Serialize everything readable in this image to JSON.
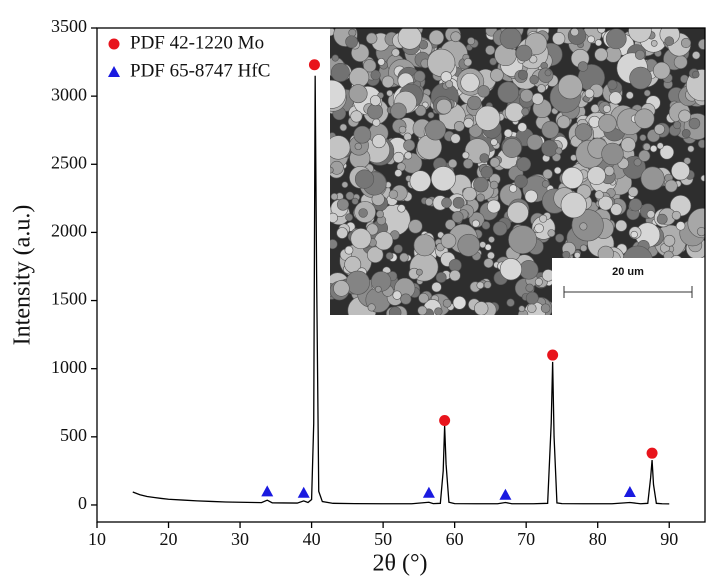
{
  "chart_data": {
    "type": "line",
    "xlabel": "2θ (°)",
    "ylabel": "Intensity (a.u.)",
    "xlim": [
      10,
      95
    ],
    "xticks": [
      10,
      20,
      30,
      40,
      50,
      60,
      70,
      80,
      90
    ],
    "ylim": [
      -125,
      3500
    ],
    "yticks": [
      0,
      500,
      1000,
      1500,
      2000,
      2500,
      3000,
      3500
    ],
    "legend": "upper left",
    "series": [
      {
        "type": "line",
        "color": "#000000",
        "x": [
          15,
          16,
          17,
          18,
          19,
          20,
          22,
          24,
          26,
          28,
          30,
          32,
          33,
          33.8,
          34.5,
          36,
          38,
          38.9,
          39.5,
          40,
          40.3,
          40.5,
          40.7,
          41,
          41.5,
          43,
          46,
          50,
          54,
          56.4,
          57,
          58,
          58.4,
          58.6,
          58.8,
          59.2,
          60,
          63,
          66,
          67.1,
          68,
          71,
          73,
          73.5,
          73.7,
          73.9,
          74.3,
          75,
          78,
          82,
          84.5,
          86,
          87,
          87.4,
          87.6,
          87.8,
          88.2,
          89,
          90
        ],
        "values": [
          95,
          75,
          62,
          55,
          48,
          42,
          36,
          30,
          26,
          22,
          20,
          18,
          17,
          35,
          16,
          15,
          14,
          30,
          18,
          40,
          600,
          3150,
          1700,
          100,
          25,
          12,
          10,
          9,
          9,
          20,
          10,
          12,
          250,
          580,
          300,
          20,
          10,
          9,
          9,
          18,
          9,
          9,
          12,
          600,
          1050,
          500,
          15,
          10,
          9,
          9,
          18,
          9,
          12,
          200,
          330,
          150,
          12,
          9,
          8
        ]
      },
      {
        "type": "scatter",
        "name": "PDF 42-1220 Mo",
        "marker": "circle",
        "color": "#e8141c",
        "x": [
          40.4,
          58.6,
          73.7,
          87.6
        ],
        "values": [
          3230,
          620,
          1100,
          380
        ]
      },
      {
        "type": "scatter",
        "name": "PDF 65-8747 HfC",
        "marker": "triangle",
        "color": "#1a1ae0",
        "x": [
          33.8,
          38.9,
          56.4,
          67.1,
          84.5
        ],
        "values": [
          100,
          90,
          90,
          75,
          95
        ]
      }
    ],
    "inset": {
      "scale_bar_label": "20 um"
    }
  }
}
